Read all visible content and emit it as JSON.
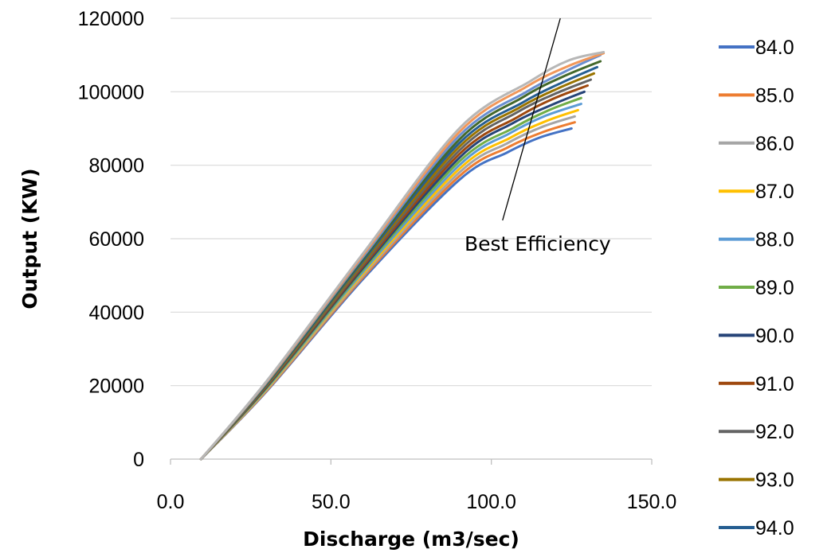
{
  "chart_data": {
    "type": "line",
    "title": "",
    "xlabel": "Discharge (m3/sec)",
    "ylabel": "Output (KW)",
    "xlim": [
      0,
      150
    ],
    "ylim": [
      0,
      120000
    ],
    "x_ticks": [
      "0.0",
      "50.0",
      "100.0",
      "150.0"
    ],
    "y_ticks": [
      "0",
      "20000",
      "40000",
      "60000",
      "80000",
      "100000",
      "120000"
    ],
    "grid": "horizontal",
    "legend_position": "right",
    "annotation": {
      "text": "Best Efficiency",
      "line_from": [
        103.5,
        65000
      ],
      "line_to": [
        121.5,
        120000
      ]
    },
    "series": [
      {
        "name": "84.0",
        "color": "#4472C4",
        "x": [
          9.5,
          30,
          60,
          90,
          105,
          115,
          125
        ],
        "y": [
          0,
          18500,
          49000,
          76000,
          83500,
          87500,
          90000
        ]
      },
      {
        "name": "85.0",
        "color": "#ED7D31",
        "x": [
          9.5,
          30,
          60,
          90,
          105,
          116,
          126
        ],
        "y": [
          0,
          18700,
          49500,
          77000,
          84800,
          89000,
          91700
        ]
      },
      {
        "name": "86.0",
        "color": "#A5A5A5",
        "x": [
          9.5,
          30,
          60,
          90,
          105,
          116,
          126
        ],
        "y": [
          0,
          18900,
          50000,
          78000,
          86000,
          90500,
          93300
        ]
      },
      {
        "name": "87.0",
        "color": "#FFC000",
        "x": [
          9.5,
          30,
          60,
          90,
          106,
          117,
          127
        ],
        "y": [
          0,
          19100,
          50500,
          79000,
          87500,
          92000,
          95000
        ]
      },
      {
        "name": "88.0",
        "color": "#5B9BD5",
        "x": [
          9.5,
          30,
          60,
          90,
          106,
          117,
          128
        ],
        "y": [
          0,
          19300,
          51000,
          80000,
          88800,
          93500,
          96700
        ]
      },
      {
        "name": "89.0",
        "color": "#70AD47",
        "x": [
          9.5,
          30,
          60,
          90,
          107,
          118,
          128
        ],
        "y": [
          0,
          19500,
          51500,
          81000,
          90200,
          95000,
          98300
        ]
      },
      {
        "name": "90.0",
        "color": "#264478",
        "x": [
          9.5,
          30,
          60,
          90,
          107,
          119,
          129
        ],
        "y": [
          0,
          19700,
          52000,
          82000,
          91600,
          96500,
          100000
        ]
      },
      {
        "name": "91.0",
        "color": "#9E480E",
        "x": [
          9.5,
          30,
          60,
          90,
          108,
          119,
          130
        ],
        "y": [
          0,
          19900,
          52500,
          83000,
          93000,
          98000,
          101700
        ]
      },
      {
        "name": "92.0",
        "color": "#636363",
        "x": [
          9.5,
          30,
          60,
          90,
          108,
          120,
          131
        ],
        "y": [
          0,
          20100,
          53000,
          84000,
          94400,
          99500,
          103300
        ]
      },
      {
        "name": "93.0",
        "color": "#997300",
        "x": [
          9.5,
          30,
          60,
          90,
          109,
          121,
          132
        ],
        "y": [
          0,
          20300,
          53500,
          85000,
          95800,
          101000,
          105000
        ]
      },
      {
        "name": "94.0",
        "color": "#255E91",
        "x": [
          9.5,
          30,
          60,
          90,
          110,
          122,
          133
        ],
        "y": [
          0,
          20500,
          54000,
          86000,
          97200,
          102500,
          106700
        ]
      },
      {
        "name": "",
        "color": "#43682B",
        "x": [
          9.5,
          30,
          60,
          90,
          110,
          122,
          134
        ],
        "y": [
          0,
          20700,
          54500,
          87000,
          98600,
          104000,
          108300
        ]
      },
      {
        "name": "",
        "color": "#698ED0",
        "x": [
          9.5,
          30,
          60,
          90,
          111,
          123,
          134
        ],
        "y": [
          0,
          20900,
          55000,
          88000,
          100000,
          105500,
          110000
        ]
      },
      {
        "name": "",
        "color": "#F1975A",
        "x": [
          9.5,
          30,
          60,
          90,
          111,
          124,
          135
        ],
        "y": [
          0,
          21100,
          55500,
          89000,
          101400,
          107000,
          110500
        ]
      },
      {
        "name": "",
        "color": "#B7B7B7",
        "x": [
          9.5,
          30,
          60,
          90,
          112,
          124,
          135
        ],
        "y": [
          0,
          21300,
          56000,
          90000,
          102800,
          108500,
          110800
        ]
      }
    ]
  }
}
